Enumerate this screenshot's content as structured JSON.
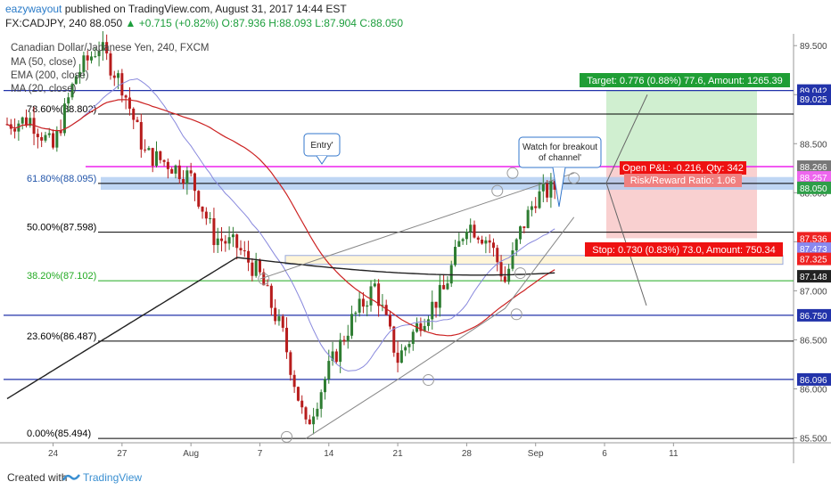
{
  "header": {
    "author": "eazywayout",
    "published": "published on TradingView.com, August 31, 2017 14:44 EST",
    "symbol": "FX:CADJPY, 240",
    "last": "88.050",
    "change_arrow": "▲",
    "change": "+0.715 (+0.82%)",
    "ohlc": "O:87.936 H:88.093 L:87.904 C:88.050"
  },
  "overlay_labels": {
    "title": "Canadian Dollar/Japanese Yen, 240, FXCM",
    "ma50": "MA (50, close)",
    "ema200": "EMA (200, close)",
    "ma20": "MA (20, close)"
  },
  "footer": {
    "created_with": "Created with",
    "brand": "TradingView"
  },
  "colors": {
    "up_candle": "#2e7d32",
    "down_candle": "#b71c1c",
    "ma20": "#8888dd",
    "ma50": "#cc2222",
    "ema200": "#222222",
    "fib": "#000000",
    "fib382": "#22aa22",
    "hline_blue": "#2233aa",
    "magenta": "#ee22ee",
    "target_fill": "#c8ecc8",
    "stop_fill": "#f8c8c8",
    "target_label": "#1f9e35",
    "stop_label": "#ee1111"
  },
  "chart_data": {
    "type": "candlestick",
    "ylim": [
      85.45,
      89.62
    ],
    "price_ticks": [
      "89.500",
      "89.000",
      "88.500",
      "88.000",
      "87.500",
      "87.000",
      "86.500",
      "86.000",
      "85.500"
    ],
    "x_ticks": [
      "24",
      "27",
      "Aug",
      "7",
      "14",
      "21",
      "28",
      "Sep",
      "6",
      "11"
    ],
    "x_tick_bars": [
      12,
      30,
      48,
      66,
      84,
      102,
      120,
      138,
      156,
      174
    ],
    "candle_count": 144,
    "close_anchors": [
      [
        0,
        88.7
      ],
      [
        6,
        88.75
      ],
      [
        12,
        88.45
      ],
      [
        18,
        89.2
      ],
      [
        24,
        89.5
      ],
      [
        30,
        89.1
      ],
      [
        36,
        88.4
      ],
      [
        42,
        88.3
      ],
      [
        48,
        88.15
      ],
      [
        54,
        87.55
      ],
      [
        60,
        87.45
      ],
      [
        66,
        87.15
      ],
      [
        72,
        86.55
      ],
      [
        78,
        85.6
      ],
      [
        84,
        86.2
      ],
      [
        90,
        86.7
      ],
      [
        96,
        87.05
      ],
      [
        102,
        86.3
      ],
      [
        108,
        86.7
      ],
      [
        114,
        87.0
      ],
      [
        120,
        87.7
      ],
      [
        126,
        87.5
      ],
      [
        130,
        87.1
      ],
      [
        134,
        87.6
      ],
      [
        138,
        87.95
      ],
      [
        143,
        88.05
      ]
    ],
    "fib_levels": [
      {
        "label": "78.60%(88.802)",
        "price": 88.802
      },
      {
        "label": "61.80%(88.095)",
        "price": 88.095
      },
      {
        "label": "50.00%(87.598)",
        "price": 87.598
      },
      {
        "label": "38.20%(87.102)",
        "price": 87.102
      },
      {
        "label": "23.60%(86.487)",
        "price": 86.487
      },
      {
        "label": "0.00%(85.494)",
        "price": 85.494
      }
    ],
    "horizontal_lines": [
      {
        "label": "89.042",
        "price": 89.042
      },
      {
        "label": "86.750",
        "price": 86.75
      },
      {
        "label": "86.096",
        "price": 86.096
      },
      {
        "label": "88.266",
        "price": 88.266
      }
    ],
    "price_axis_labels": [
      {
        "text": "89.042",
        "price": 89.042,
        "color": "#2233aa"
      },
      {
        "text": "89.025",
        "price": 88.957,
        "color": "#2233aa"
      },
      {
        "text": "88.266",
        "price": 88.266,
        "color": "#777777"
      },
      {
        "text": "88.257",
        "price": 88.157,
        "color": "#ee66ee"
      },
      {
        "text": "88.050",
        "price": 88.05,
        "color": "#2e9e48"
      },
      {
        "text": "87.536",
        "price": 87.536,
        "color": "#ee2222"
      },
      {
        "text": "87.473",
        "price": 87.43,
        "color": "#8888ee"
      },
      {
        "text": "87.325",
        "price": 87.325,
        "color": "#ee2222"
      },
      {
        "text": "87.148",
        "price": 87.148,
        "color": "#222222"
      },
      {
        "text": "86.750",
        "price": 86.75,
        "color": "#2233aa"
      },
      {
        "text": "86.096",
        "price": 86.096,
        "color": "#2233aa"
      }
    ],
    "annotations": {
      "entry": "Entry'",
      "watch": [
        "Watch for breakout",
        "of channel'"
      ],
      "target": "Target: 0.776 (0.88%) 77.6, Amount: 1265.39",
      "open_pnl": "Open P&L: -0.216, Qty: 342",
      "risk_reward": "Risk/Reward Ratio: 1.06",
      "stop": "Stop: 0.730 (0.83%) 73.0, Amount: 750.34"
    },
    "position": {
      "entry": 88.266,
      "target": 89.042,
      "stop": 87.536
    },
    "channel": {
      "lower": [
        [
          78,
          85.494
        ],
        [
          102,
          86.096
        ],
        [
          130,
          86.82
        ],
        [
          148,
          87.75
        ]
      ],
      "upper": [
        [
          66,
          87.12
        ],
        [
          110,
          87.7
        ],
        [
          148,
          88.2
        ]
      ]
    }
  }
}
